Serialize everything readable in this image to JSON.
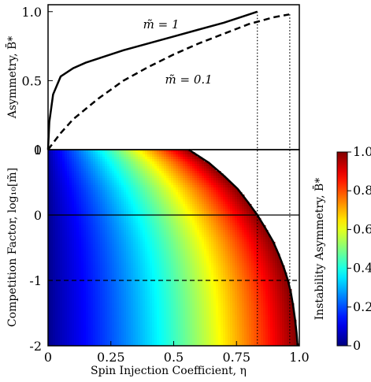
{
  "chart_data": [
    {
      "id": "top",
      "type": "line",
      "ylabel": "Asymmetry, B̄*",
      "xlim": [
        0,
        1
      ],
      "ylim": [
        0,
        1.05
      ],
      "yticks": [
        {
          "v": 0,
          "label": "0"
        },
        {
          "v": 0.5,
          "label": "0.5"
        },
        {
          "v": 1.0,
          "label": "1.0"
        }
      ],
      "grid": false,
      "annotations": [
        {
          "text": "m̃ = 1",
          "x": 0.45,
          "y": 0.88
        },
        {
          "text": "m̃ = 0.1",
          "x": 0.56,
          "y": 0.48
        }
      ],
      "series": [
        {
          "name": "m̃ = 1",
          "style": "solid",
          "x": [
            0,
            0.005,
            0.02,
            0.05,
            0.1,
            0.15,
            0.2,
            0.3,
            0.4,
            0.5,
            0.6,
            0.7,
            0.8,
            0.833
          ],
          "y": [
            0,
            0.2,
            0.4,
            0.53,
            0.59,
            0.63,
            0.66,
            0.72,
            0.77,
            0.82,
            0.87,
            0.92,
            0.98,
            1.0
          ]
        },
        {
          "name": "m̃ = 0.1",
          "style": "dashed",
          "x": [
            0,
            0.05,
            0.1,
            0.2,
            0.3,
            0.4,
            0.5,
            0.6,
            0.7,
            0.8,
            0.9,
            0.96
          ],
          "y": [
            0,
            0.12,
            0.22,
            0.37,
            0.5,
            0.6,
            0.69,
            0.77,
            0.84,
            0.91,
            0.96,
            0.98
          ]
        }
      ],
      "vlines": [
        0.833,
        0.962
      ]
    },
    {
      "id": "bottom",
      "type": "heatmap",
      "xlabel": "Spin Injection Coefficient, η",
      "ylabel": "Competition Factor, log₁₀[m̃]",
      "xlim": [
        0,
        1
      ],
      "ylim": [
        -2,
        1
      ],
      "xticks": [
        {
          "v": 0,
          "label": "0"
        },
        {
          "v": 0.25,
          "label": "0.25"
        },
        {
          "v": 0.5,
          "label": "0.5"
        },
        {
          "v": 0.75,
          "label": "0.75"
        },
        {
          "v": 1.0,
          "label": "1.0"
        }
      ],
      "yticks": [
        {
          "v": 1,
          "label": "1"
        },
        {
          "v": 0,
          "label": "0"
        },
        {
          "v": -1,
          "label": "-1"
        },
        {
          "v": -2,
          "label": "-2"
        }
      ],
      "hlines": [
        {
          "y": 0,
          "style": "solid"
        },
        {
          "y": -1,
          "style": "dashed"
        }
      ],
      "vlines": [
        0.833,
        0.962
      ],
      "boundary": {
        "y": [
          1.0,
          0.8,
          0.6,
          0.4,
          0.2,
          0.0,
          -0.2,
          -0.4,
          -0.6,
          -0.8,
          -1.0,
          -1.2,
          -1.4,
          -1.6,
          -1.8,
          -2.0
        ],
        "x": [
          0.56,
          0.64,
          0.7,
          0.755,
          0.795,
          0.833,
          0.865,
          0.895,
          0.918,
          0.938,
          0.955,
          0.967,
          0.976,
          0.983,
          0.989,
          0.993
        ]
      },
      "colorbar": {
        "label": "Instability Asymmetry, B̄*",
        "range": [
          0,
          1.0
        ],
        "ticks": [
          {
            "v": 0,
            "label": "0"
          },
          {
            "v": 0.2,
            "label": "0.2"
          },
          {
            "v": 0.4,
            "label": "0.4"
          },
          {
            "v": 0.6,
            "label": "0.6"
          },
          {
            "v": 0.8,
            "label": "0.8"
          },
          {
            "v": 1.0,
            "label": "1.0"
          }
        ],
        "colormap": "jet"
      }
    }
  ]
}
